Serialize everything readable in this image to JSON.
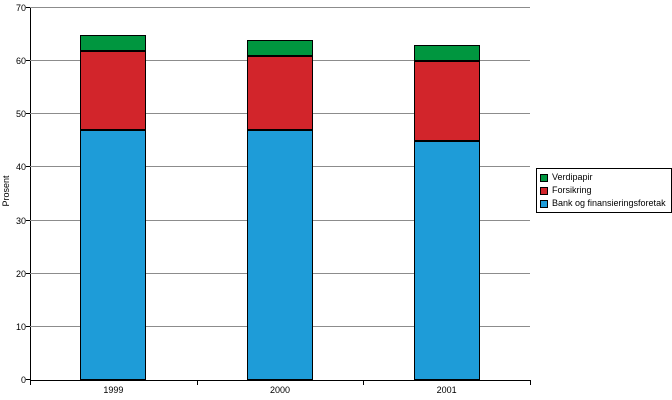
{
  "chart_data": {
    "type": "bar",
    "stacked": true,
    "title": "",
    "xlabel": "",
    "ylabel": "Prosent",
    "ylim": [
      0,
      70
    ],
    "ytick_step": 10,
    "grid": true,
    "legend_position": "right",
    "categories": [
      "1999",
      "2000",
      "2001"
    ],
    "series": [
      {
        "name": "Bank og finansieringsforetak",
        "color": "#1E9CD8",
        "values": [
          47,
          47,
          45
        ]
      },
      {
        "name": "Forsikring",
        "color": "#D2252B",
        "values": [
          15,
          14,
          15
        ]
      },
      {
        "name": "Verdipapir",
        "color": "#00963F",
        "values": [
          3,
          3,
          3
        ]
      }
    ],
    "legend_order": [
      "Verdipapir",
      "Forsikring",
      "Bank og finansieringsforetak"
    ]
  }
}
